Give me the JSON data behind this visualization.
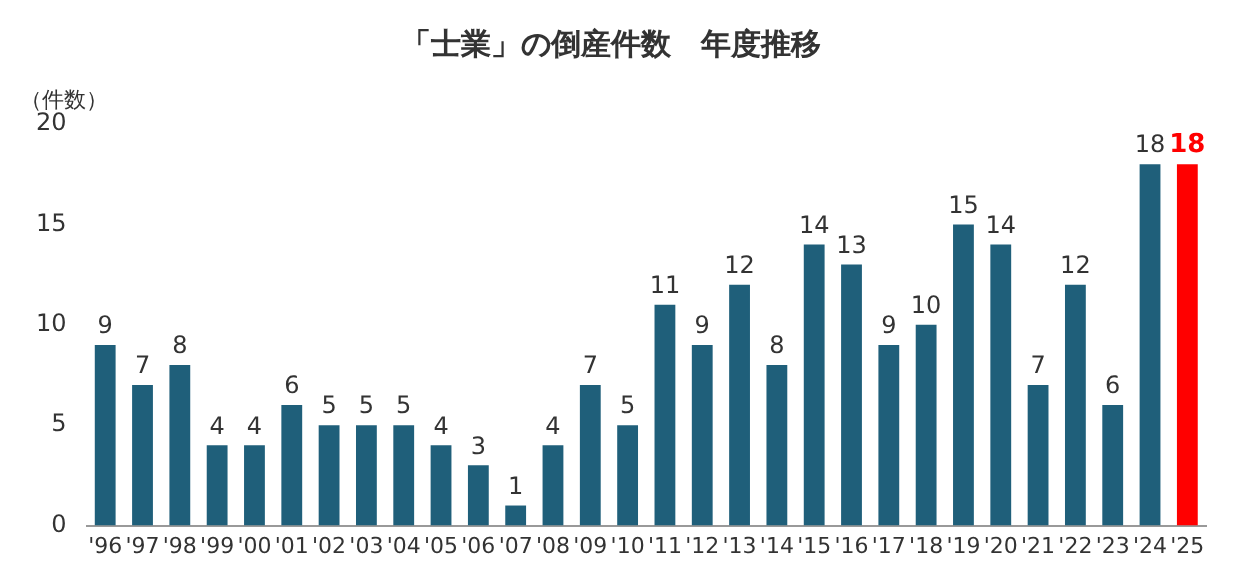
{
  "chart_data": {
    "type": "bar",
    "title": "「士業」の倒産件数　年度推移",
    "ylabel": "（件数）",
    "categories": [
      "'96",
      "'97",
      "'98",
      "'99",
      "'00",
      "'01",
      "'02",
      "'03",
      "'04",
      "'05",
      "'06",
      "'07",
      "'08",
      "'09",
      "'10",
      "'11",
      "'12",
      "'13",
      "'14",
      "'15",
      "'16",
      "'17",
      "'18",
      "'19",
      "'20",
      "'21",
      "'22",
      "'23",
      "'24",
      "'25"
    ],
    "values": [
      9,
      7,
      8,
      4,
      4,
      6,
      5,
      5,
      5,
      4,
      3,
      1,
      4,
      7,
      5,
      11,
      9,
      12,
      8,
      14,
      13,
      9,
      10,
      15,
      14,
      7,
      12,
      6,
      18,
      18
    ],
    "colors": [
      "#1f5f7a",
      "#1f5f7a",
      "#1f5f7a",
      "#1f5f7a",
      "#1f5f7a",
      "#1f5f7a",
      "#1f5f7a",
      "#1f5f7a",
      "#1f5f7a",
      "#1f5f7a",
      "#1f5f7a",
      "#1f5f7a",
      "#1f5f7a",
      "#1f5f7a",
      "#1f5f7a",
      "#1f5f7a",
      "#1f5f7a",
      "#1f5f7a",
      "#1f5f7a",
      "#1f5f7a",
      "#1f5f7a",
      "#1f5f7a",
      "#1f5f7a",
      "#1f5f7a",
      "#1f5f7a",
      "#1f5f7a",
      "#1f5f7a",
      "#1f5f7a",
      "#1f5f7a",
      "#ff0000"
    ],
    "ylim": [
      0,
      20
    ],
    "yticks": [
      0,
      5,
      10,
      15,
      20
    ],
    "grid": false,
    "legend": false,
    "data_labels": true
  }
}
